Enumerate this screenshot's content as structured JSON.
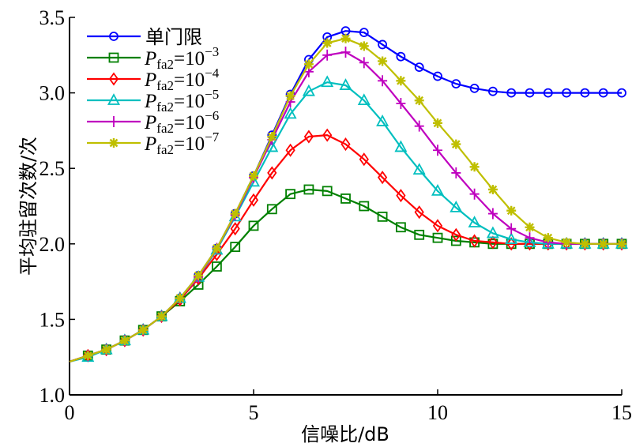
{
  "chart_data": {
    "type": "line",
    "title": "",
    "xlabel": "信噪比/dB",
    "ylabel": "平均驻留次数/次",
    "xlim": [
      0,
      15
    ],
    "ylim": [
      1.0,
      3.5
    ],
    "xticks": [
      "0",
      "5",
      "10",
      "15"
    ],
    "yticks": [
      "1.0",
      "1.5",
      "2.0",
      "2.5",
      "3.0",
      "3.5"
    ],
    "legend_position": "top-left",
    "grid": false,
    "x": [
      0,
      0.5,
      1,
      1.5,
      2,
      2.5,
      3,
      3.5,
      4,
      4.5,
      5,
      5.5,
      6,
      6.5,
      7,
      7.5,
      8,
      8.5,
      9,
      9.5,
      10,
      10.5,
      11,
      11.5,
      12,
      12.5,
      13,
      13.5,
      14,
      14.5,
      15
    ],
    "series": [
      {
        "name": "单门限",
        "label_main": "单门限",
        "label_sub": "",
        "label_exp": "",
        "color": "#0000ff",
        "marker": "circle",
        "values": [
          1.22,
          1.26,
          1.3,
          1.36,
          1.43,
          1.52,
          1.64,
          1.79,
          1.97,
          2.2,
          2.45,
          2.72,
          2.99,
          3.22,
          3.37,
          3.41,
          3.4,
          3.32,
          3.24,
          3.17,
          3.11,
          3.06,
          3.03,
          3.01,
          3.0,
          3.0,
          3.0,
          3.0,
          3.0,
          3.0,
          3.0
        ]
      },
      {
        "name": "Pfa2=10^-3",
        "label_main": "P",
        "label_sub": "fa2",
        "label_eq": "=10",
        "label_exp": "−3",
        "color": "#008000",
        "marker": "square",
        "values": [
          1.22,
          1.26,
          1.3,
          1.36,
          1.43,
          1.52,
          1.62,
          1.73,
          1.85,
          1.98,
          2.12,
          2.23,
          2.33,
          2.36,
          2.35,
          2.3,
          2.25,
          2.18,
          2.11,
          2.06,
          2.04,
          2.02,
          2.01,
          2.0,
          2.0,
          2.0,
          2.0,
          2.0,
          2.0,
          2.0,
          2.0
        ]
      },
      {
        "name": "Pfa2=10^-4",
        "label_main": "P",
        "label_sub": "fa2",
        "label_eq": "=10",
        "label_exp": "−4",
        "color": "#ff0000",
        "marker": "diamond",
        "values": [
          1.22,
          1.26,
          1.3,
          1.36,
          1.43,
          1.52,
          1.63,
          1.77,
          1.93,
          2.1,
          2.29,
          2.47,
          2.62,
          2.71,
          2.72,
          2.66,
          2.56,
          2.44,
          2.32,
          2.21,
          2.12,
          2.06,
          2.02,
          2.01,
          2.0,
          2.0,
          2.0,
          2.0,
          2.0,
          2.0,
          2.0
        ]
      },
      {
        "name": "Pfa2=10^-5",
        "label_main": "P",
        "label_sub": "fa2",
        "label_eq": "=10",
        "label_exp": "−5",
        "color": "#00bfbf",
        "marker": "triangle",
        "values": [
          1.22,
          1.25,
          1.3,
          1.36,
          1.43,
          1.52,
          1.64,
          1.78,
          1.96,
          2.18,
          2.41,
          2.64,
          2.86,
          3.01,
          3.07,
          3.05,
          2.95,
          2.81,
          2.64,
          2.49,
          2.35,
          2.24,
          2.14,
          2.07,
          2.03,
          2.01,
          2.0,
          2.0,
          2.0,
          2.0,
          2.0
        ]
      },
      {
        "name": "Pfa2=10^-6",
        "label_main": "P",
        "label_sub": "fa2",
        "label_eq": "=10",
        "label_exp": "−6",
        "color": "#bf00bf",
        "marker": "plus",
        "values": [
          1.22,
          1.26,
          1.3,
          1.36,
          1.43,
          1.52,
          1.64,
          1.78,
          1.97,
          2.19,
          2.44,
          2.69,
          2.94,
          3.14,
          3.25,
          3.27,
          3.2,
          3.08,
          2.93,
          2.78,
          2.62,
          2.47,
          2.33,
          2.2,
          2.1,
          2.04,
          2.01,
          2.0,
          2.0,
          2.0,
          2.0
        ]
      },
      {
        "name": "Pfa2=10^-7",
        "label_main": "P",
        "label_sub": "fa2",
        "label_eq": "=10",
        "label_exp": "−7",
        "color": "#bfbf00",
        "marker": "star",
        "values": [
          1.22,
          1.26,
          1.3,
          1.36,
          1.43,
          1.52,
          1.64,
          1.79,
          1.97,
          2.2,
          2.45,
          2.71,
          2.98,
          3.19,
          3.33,
          3.36,
          3.31,
          3.21,
          3.08,
          2.95,
          2.8,
          2.66,
          2.51,
          2.36,
          2.22,
          2.11,
          2.04,
          2.01,
          2.0,
          2.0,
          2.0
        ]
      }
    ]
  }
}
